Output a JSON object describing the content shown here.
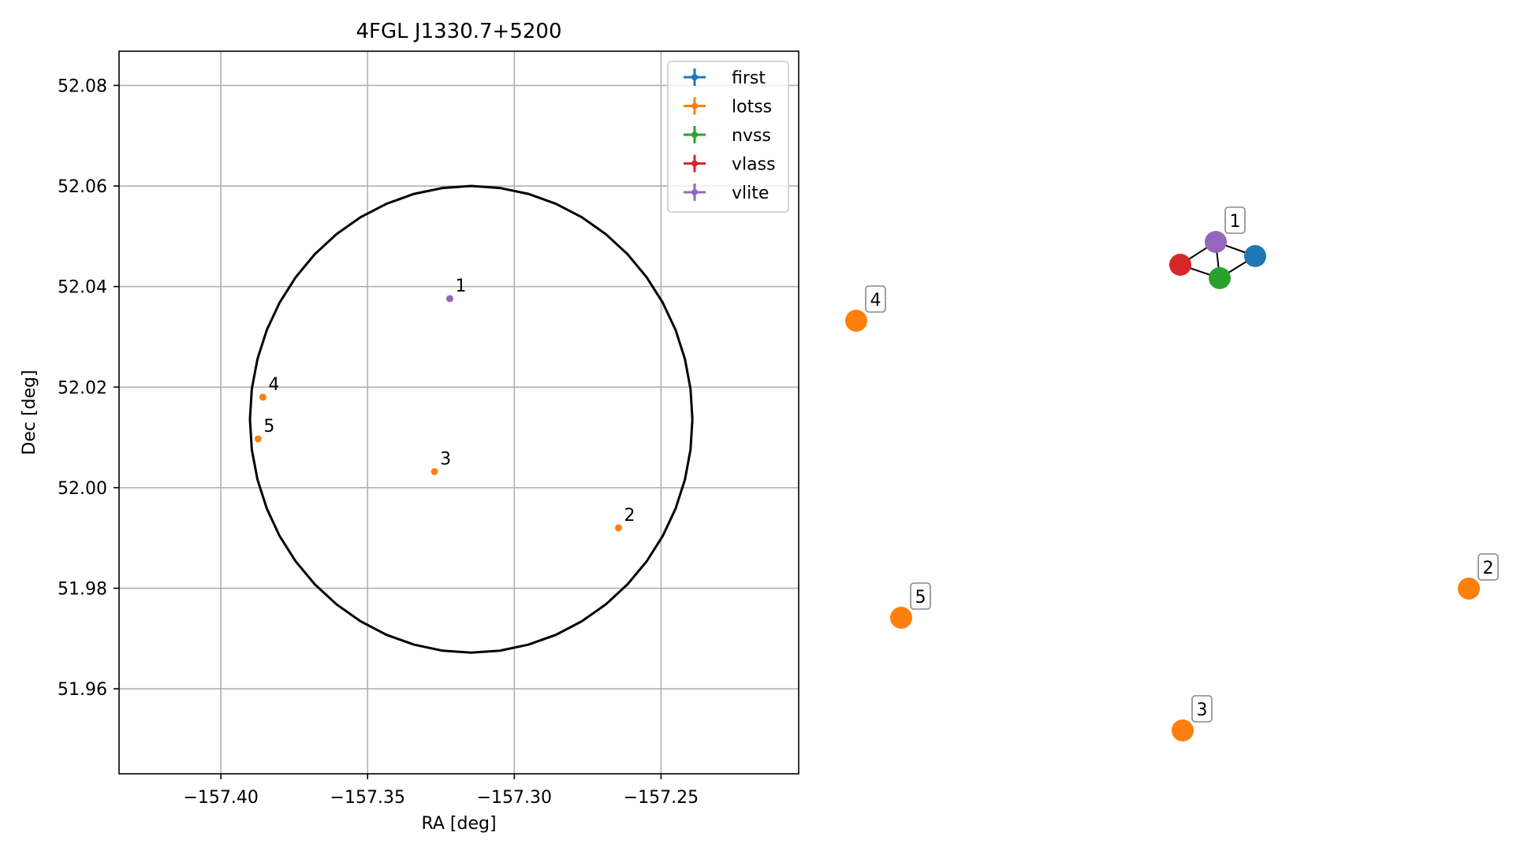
{
  "chart_data": [
    {
      "type": "scatter",
      "title": "4FGL J1330.7+5200",
      "xlabel": "RA [deg]",
      "ylabel": "Dec [deg]",
      "xlim": [
        -157.4347,
        -157.2031
      ],
      "ylim": [
        51.9431,
        52.0868
      ],
      "xticks": [
        -157.4,
        -157.35,
        -157.3,
        -157.25
      ],
      "xtick_labels": [
        "−157.40",
        "−157.35",
        "−157.30",
        "−157.25"
      ],
      "yticks": [
        51.96,
        51.98,
        52.0,
        52.02,
        52.04,
        52.06,
        52.08
      ],
      "ytick_labels": [
        "51.96",
        "51.98",
        "52.00",
        "52.02",
        "52.04",
        "52.06",
        "52.08"
      ],
      "grid": true,
      "legend_position": "upper right",
      "circle": {
        "ra": -157.3147,
        "dec": 52.0136,
        "radius_dec": 0.0464
      },
      "series": [
        {
          "name": "first",
          "color": "#1f77b4",
          "points": []
        },
        {
          "name": "lotss",
          "color": "#ff7f0e",
          "points": [
            {
              "label": "2",
              "ra": -157.2645,
              "dec": 51.992
            },
            {
              "label": "3",
              "ra": -157.3272,
              "dec": 52.0032
            },
            {
              "label": "4",
              "ra": -157.3857,
              "dec": 52.018
            },
            {
              "label": "5",
              "ra": -157.3873,
              "dec": 52.0097
            }
          ]
        },
        {
          "name": "nvss",
          "color": "#2ca02c",
          "points": []
        },
        {
          "name": "vlass",
          "color": "#d62728",
          "points": []
        },
        {
          "name": "vlite",
          "color": "#9467bd",
          "points": [
            {
              "label": "1",
              "ra": -157.322,
              "dec": 52.0376
            }
          ]
        }
      ]
    },
    {
      "type": "network",
      "nodes": [
        {
          "id": "first",
          "color": "#1f77b4"
        },
        {
          "id": "vlite",
          "color": "#9467bd",
          "label": "1"
        },
        {
          "id": "vlass",
          "color": "#d62728"
        },
        {
          "id": "nvss",
          "color": "#2ca02c"
        },
        {
          "id": "lotss-4",
          "color": "#ff7f0e",
          "label": "4"
        },
        {
          "id": "lotss-5",
          "color": "#ff7f0e",
          "label": "5"
        },
        {
          "id": "lotss-3",
          "color": "#ff7f0e",
          "label": "3"
        },
        {
          "id": "lotss-2",
          "color": "#ff7f0e",
          "label": "2"
        }
      ],
      "edges": [
        [
          "vlite",
          "vlass"
        ],
        [
          "vlite",
          "nvss"
        ],
        [
          "vlite",
          "first"
        ],
        [
          "vlass",
          "nvss"
        ],
        [
          "nvss",
          "first"
        ]
      ]
    }
  ]
}
